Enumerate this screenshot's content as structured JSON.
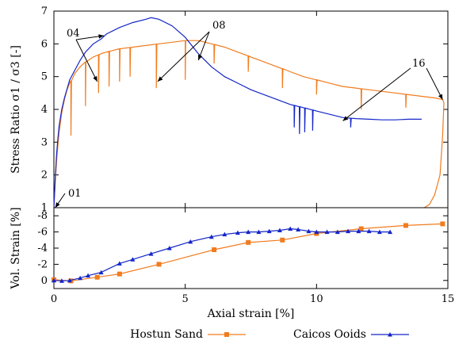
{
  "chart_data": [
    {
      "type": "line",
      "ylabel": "Stress Ratio σ1 / σ3 [-]",
      "xlim": [
        0,
        15
      ],
      "ylim": [
        1,
        7
      ],
      "yticks": [
        "1",
        "2",
        "3",
        "4",
        "5",
        "6",
        "7"
      ],
      "grid": false,
      "annotations": [
        {
          "text": "01",
          "target": [
            0.05,
            1.0
          ]
        },
        {
          "text": "04",
          "targets": [
            [
              1.9,
              6.25
            ],
            [
              1.65,
              4.85
            ]
          ]
        },
        {
          "text": "08",
          "targets": [
            [
              3.95,
              4.85
            ],
            [
              5.5,
              5.5
            ]
          ]
        },
        {
          "text": "16",
          "targets": [
            [
              11.0,
              3.65
            ],
            [
              14.8,
              4.3
            ]
          ]
        }
      ],
      "series": [
        {
          "name": "Hostun Sand",
          "color": "#f07c1f",
          "x": [
            0,
            0.05,
            0.1,
            0.15,
            0.2,
            0.3,
            0.4,
            0.5,
            0.6,
            0.8,
            1.0,
            1.2,
            1.5,
            1.8,
            2.0,
            2.5,
            3.0,
            3.5,
            4.0,
            4.5,
            5.0,
            5.5,
            6.0,
            6.5,
            7.0,
            7.5,
            8.0,
            8.5,
            9.0,
            9.5,
            10.0,
            10.5,
            11.0,
            11.5,
            12.0,
            12.5,
            13.0,
            13.5,
            14.0,
            14.5,
            14.8,
            14.85,
            14.8,
            14.7,
            14.5,
            14.3,
            14.1
          ],
          "y": [
            1.0,
            1.8,
            2.4,
            2.9,
            3.3,
            3.9,
            4.3,
            4.6,
            4.8,
            5.1,
            5.3,
            5.45,
            5.6,
            5.7,
            5.75,
            5.85,
            5.9,
            5.95,
            6.0,
            6.05,
            6.1,
            6.1,
            6.0,
            5.9,
            5.75,
            5.6,
            5.45,
            5.3,
            5.15,
            5.0,
            4.9,
            4.8,
            4.7,
            4.65,
            4.6,
            4.55,
            4.5,
            4.45,
            4.4,
            4.35,
            4.3,
            4.2,
            3.2,
            2.0,
            1.4,
            1.1,
            1.0
          ],
          "dips": [
            [
              0.65,
              3.2
            ],
            [
              1.2,
              4.1
            ],
            [
              1.7,
              4.5
            ],
            [
              2.1,
              4.7
            ],
            [
              2.5,
              4.85
            ],
            [
              2.9,
              5.0
            ],
            [
              3.9,
              4.65
            ],
            [
              5.0,
              4.9
            ],
            [
              6.1,
              5.4
            ],
            [
              7.4,
              5.15
            ],
            [
              8.7,
              4.65
            ],
            [
              10.0,
              4.45
            ],
            [
              11.7,
              4.0
            ],
            [
              13.4,
              4.05
            ]
          ]
        },
        {
          "name": "Caicos Ooids",
          "color": "#1426c8",
          "x": [
            0,
            0.05,
            0.1,
            0.15,
            0.2,
            0.3,
            0.4,
            0.6,
            0.8,
            1.0,
            1.2,
            1.5,
            1.8,
            2.0,
            2.5,
            3.0,
            3.5,
            3.7,
            4.0,
            4.5,
            5.0,
            5.5,
            6.0,
            6.5,
            7.0,
            7.5,
            8.0,
            8.5,
            9.0,
            9.5,
            10.0,
            10.5,
            11.0,
            11.5,
            12.0,
            12.5,
            13.0,
            13.5,
            14.0
          ],
          "y": [
            1.0,
            1.9,
            2.6,
            3.1,
            3.5,
            4.0,
            4.35,
            4.9,
            5.2,
            5.5,
            5.75,
            6.0,
            6.15,
            6.3,
            6.5,
            6.65,
            6.75,
            6.8,
            6.75,
            6.55,
            6.2,
            5.7,
            5.3,
            5.0,
            4.8,
            4.6,
            4.45,
            4.3,
            4.15,
            4.05,
            3.95,
            3.85,
            3.75,
            3.72,
            3.7,
            3.68,
            3.68,
            3.7,
            3.7
          ],
          "dips": [
            [
              9.15,
              3.45
            ],
            [
              9.35,
              3.25
            ],
            [
              9.55,
              3.3
            ],
            [
              9.85,
              3.35
            ],
            [
              11.3,
              3.45
            ]
          ]
        }
      ]
    },
    {
      "type": "line",
      "xlabel": "Axial strain [%]",
      "ylabel": "Vol. Strain [%]",
      "xlim": [
        0,
        15
      ],
      "ylim": [
        1,
        -9
      ],
      "xticks": [
        "0",
        "5",
        "10",
        "15"
      ],
      "yticks": [
        "0",
        "-2",
        "-4",
        "-6",
        "-8"
      ],
      "grid": false,
      "legend_position": "bottom",
      "series": [
        {
          "name": "Hostun Sand",
          "color": "#f07c1f",
          "marker": "square",
          "x": [
            0,
            0.65,
            1.65,
            2.5,
            4.0,
            6.1,
            7.4,
            8.7,
            10.0,
            11.7,
            13.4,
            14.8
          ],
          "y": [
            -0.1,
            0.05,
            -0.4,
            -0.8,
            -2.0,
            -3.8,
            -4.7,
            -5.0,
            -5.8,
            -6.4,
            -6.8,
            -7.0
          ]
        },
        {
          "name": "Caicos Ooids",
          "color": "#1426c8",
          "marker": "triangle",
          "x": [
            0,
            0.3,
            0.6,
            1.0,
            1.3,
            1.8,
            2.5,
            3.0,
            3.7,
            4.4,
            5.2,
            6.0,
            6.5,
            7.0,
            7.4,
            7.8,
            8.2,
            8.6,
            9.0,
            9.3,
            9.7,
            10.0,
            10.4,
            10.8,
            11.2,
            11.6,
            12.0,
            12.4,
            12.8
          ],
          "y": [
            0.0,
            0.05,
            0.0,
            -0.3,
            -0.6,
            -1.0,
            -2.1,
            -2.6,
            -3.3,
            -4.0,
            -4.8,
            -5.4,
            -5.7,
            -5.9,
            -6.0,
            -6.0,
            -6.1,
            -6.2,
            -6.4,
            -6.3,
            -6.1,
            -6.0,
            -6.0,
            -6.0,
            -6.1,
            -6.1,
            -6.1,
            -6.0,
            -6.0
          ]
        }
      ]
    }
  ]
}
